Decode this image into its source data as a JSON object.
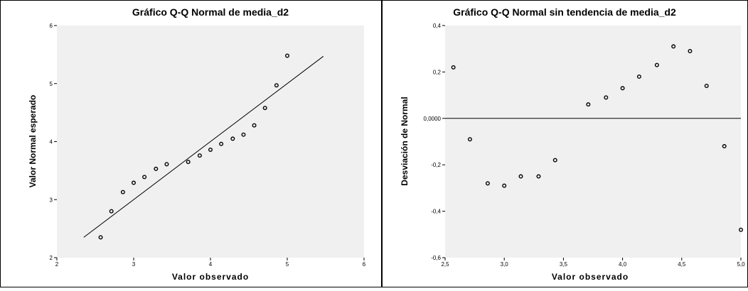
{
  "chart_data": [
    {
      "type": "scatter",
      "title": "Gráfico Q-Q Normal de media_d2",
      "xlabel": "Valor observado",
      "ylabel": "Valor Normal esperado",
      "xlim": [
        2,
        6
      ],
      "ylim": [
        2,
        6
      ],
      "x_ticks": [
        2,
        3,
        4,
        5,
        6
      ],
      "y_ticks": [
        2,
        3,
        4,
        5,
        6
      ],
      "x_tick_labels": [
        "2",
        "3",
        "4",
        "5",
        "6"
      ],
      "y_tick_labels": [
        "2",
        "3",
        "4",
        "5",
        "6"
      ],
      "grid": false,
      "reference_line": {
        "x": [
          2.35,
          5.47
        ],
        "y": [
          2.35,
          5.47
        ]
      },
      "points": [
        {
          "x": 2.57,
          "y": 2.35
        },
        {
          "x": 2.71,
          "y": 2.8
        },
        {
          "x": 2.86,
          "y": 3.13
        },
        {
          "x": 3.0,
          "y": 3.29
        },
        {
          "x": 3.14,
          "y": 3.39
        },
        {
          "x": 3.29,
          "y": 3.53
        },
        {
          "x": 3.43,
          "y": 3.61
        },
        {
          "x": 3.71,
          "y": 3.65
        },
        {
          "x": 3.86,
          "y": 3.76
        },
        {
          "x": 4.0,
          "y": 3.86
        },
        {
          "x": 4.14,
          "y": 3.96
        },
        {
          "x": 4.29,
          "y": 4.05
        },
        {
          "x": 4.43,
          "y": 4.12
        },
        {
          "x": 4.57,
          "y": 4.28
        },
        {
          "x": 4.71,
          "y": 4.58
        },
        {
          "x": 4.86,
          "y": 4.97
        },
        {
          "x": 5.0,
          "y": 5.48
        }
      ],
      "colors": {
        "plot_bg": "#f0f0f0",
        "marker": "#000000",
        "line": "#000000"
      }
    },
    {
      "type": "scatter",
      "title": "Gráfico Q-Q Normal sin tendencia de media_d2",
      "xlabel": "Valor observado",
      "ylabel": "Desviación de Normal",
      "xlim": [
        2.5,
        5.0
      ],
      "ylim": [
        -0.6,
        0.4
      ],
      "x_ticks": [
        2.5,
        3.0,
        3.5,
        4.0,
        4.5,
        5.0
      ],
      "y_ticks": [
        -0.6,
        -0.4,
        -0.2,
        0.0,
        0.2,
        0.4
      ],
      "x_tick_labels": [
        "2,5",
        "3,0",
        "3,5",
        "4,0",
        "4,5",
        "5,0"
      ],
      "y_tick_labels": [
        "-0,6",
        "-0,4",
        "-0,2",
        "0,0000",
        "0,2",
        "0,4"
      ],
      "grid": false,
      "reference_line": {
        "y": 0
      },
      "points": [
        {
          "x": 2.57,
          "y": 0.22
        },
        {
          "x": 2.71,
          "y": -0.09
        },
        {
          "x": 2.86,
          "y": -0.28
        },
        {
          "x": 3.0,
          "y": -0.29
        },
        {
          "x": 3.14,
          "y": -0.25
        },
        {
          "x": 3.29,
          "y": -0.25
        },
        {
          "x": 3.43,
          "y": -0.18
        },
        {
          "x": 3.71,
          "y": 0.06
        },
        {
          "x": 3.86,
          "y": 0.09
        },
        {
          "x": 4.0,
          "y": 0.13
        },
        {
          "x": 4.14,
          "y": 0.18
        },
        {
          "x": 4.29,
          "y": 0.23
        },
        {
          "x": 4.43,
          "y": 0.31
        },
        {
          "x": 4.57,
          "y": 0.29
        },
        {
          "x": 4.71,
          "y": 0.14
        },
        {
          "x": 4.86,
          "y": -0.12
        },
        {
          "x": 5.0,
          "y": -0.48
        }
      ],
      "colors": {
        "plot_bg": "#f0f0f0",
        "marker": "#000000",
        "line": "#000000"
      }
    }
  ]
}
